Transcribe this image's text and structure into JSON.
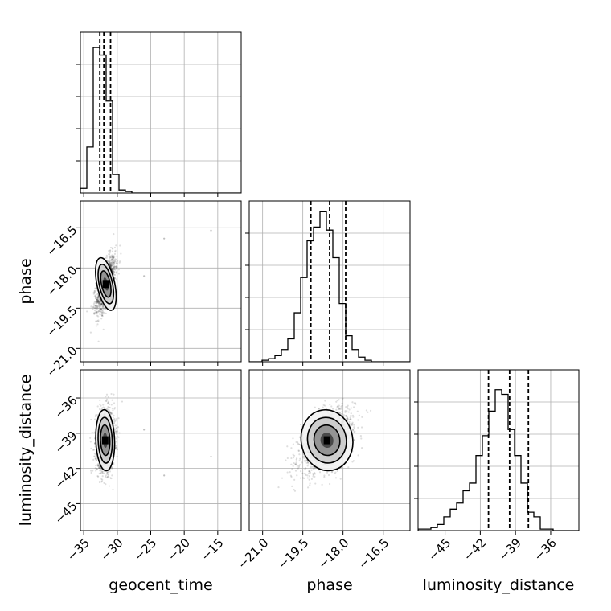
{
  "chart_data": {
    "type": "corner",
    "parameters": [
      "geocent_time",
      "phase",
      "luminosity_distance"
    ],
    "xlabels": [
      "geocent_time",
      "phase",
      "luminosity_distance"
    ],
    "ylabels": [
      "",
      "phase",
      "luminosity_distance"
    ],
    "ranges": [
      [
        -35.5,
        -11.5
      ],
      [
        -21.5,
        -15.5
      ],
      [
        -47.3,
        -33.6
      ]
    ],
    "ticks": [
      {
        "values": [
          -35,
          -30,
          -25,
          -20,
          -15
        ],
        "labels": [
          "−35",
          "−30",
          "−25",
          "−20",
          "−15"
        ]
      },
      {
        "values": [
          -21.0,
          -19.5,
          -18.0,
          -16.5
        ],
        "labels": [
          "−21.0",
          "−19.5",
          "−18.0",
          "−16.5"
        ]
      },
      {
        "values": [
          -45,
          -42,
          -39,
          -36
        ],
        "labels": [
          "−45",
          "−42",
          "−39",
          "−36"
        ]
      }
    ],
    "grid": true,
    "quantiles_1d": [
      [
        -32.6,
        -32.0,
        -31.0
      ],
      [
        -19.2,
        -18.5,
        -17.9
      ],
      [
        -41.3,
        -39.5,
        -37.9
      ]
    ],
    "histograms_1d": [
      {
        "bin_start": -35.5,
        "bin_width": 0.96,
        "counts": [
          0.03,
          0.3,
          0.95,
          0.9,
          0.6,
          0.12,
          0.02,
          0.01,
          0,
          0,
          0,
          0,
          0,
          0,
          0,
          0,
          0,
          0,
          0,
          0,
          0,
          0,
          0,
          0,
          0
        ]
      },
      {
        "bin_start": -21.5,
        "bin_width": 0.24,
        "counts": [
          0,
          0,
          0.01,
          0.02,
          0.04,
          0.08,
          0.15,
          0.32,
          0.55,
          0.79,
          0.88,
          0.98,
          0.86,
          0.68,
          0.38,
          0.17,
          0.08,
          0.03,
          0.01,
          0,
          0,
          0,
          0,
          0,
          0
        ]
      },
      {
        "bin_start": -47.3,
        "bin_width": 0.548,
        "counts": [
          0.01,
          0.01,
          0.02,
          0.04,
          0.09,
          0.14,
          0.18,
          0.26,
          0.31,
          0.49,
          0.62,
          0.78,
          0.92,
          0.89,
          0.66,
          0.49,
          0.31,
          0.12,
          0.09,
          0.01,
          0.01,
          0,
          0,
          0,
          0
        ]
      }
    ],
    "posterior_2d": [
      {
        "x": 0,
        "y": 1,
        "mean": [
          -31.7,
          -18.6
        ],
        "sd": [
          0.7,
          0.5
        ],
        "rho": 0.6
      },
      {
        "x": 0,
        "y": 2,
        "mean": [
          -31.8,
          -39.6
        ],
        "sd": [
          0.7,
          1.3
        ],
        "rho": 0.1
      },
      {
        "x": 1,
        "y": 2,
        "mean": [
          -18.6,
          -39.6
        ],
        "sd": [
          0.5,
          1.3
        ],
        "rho": 0.5
      }
    ]
  }
}
